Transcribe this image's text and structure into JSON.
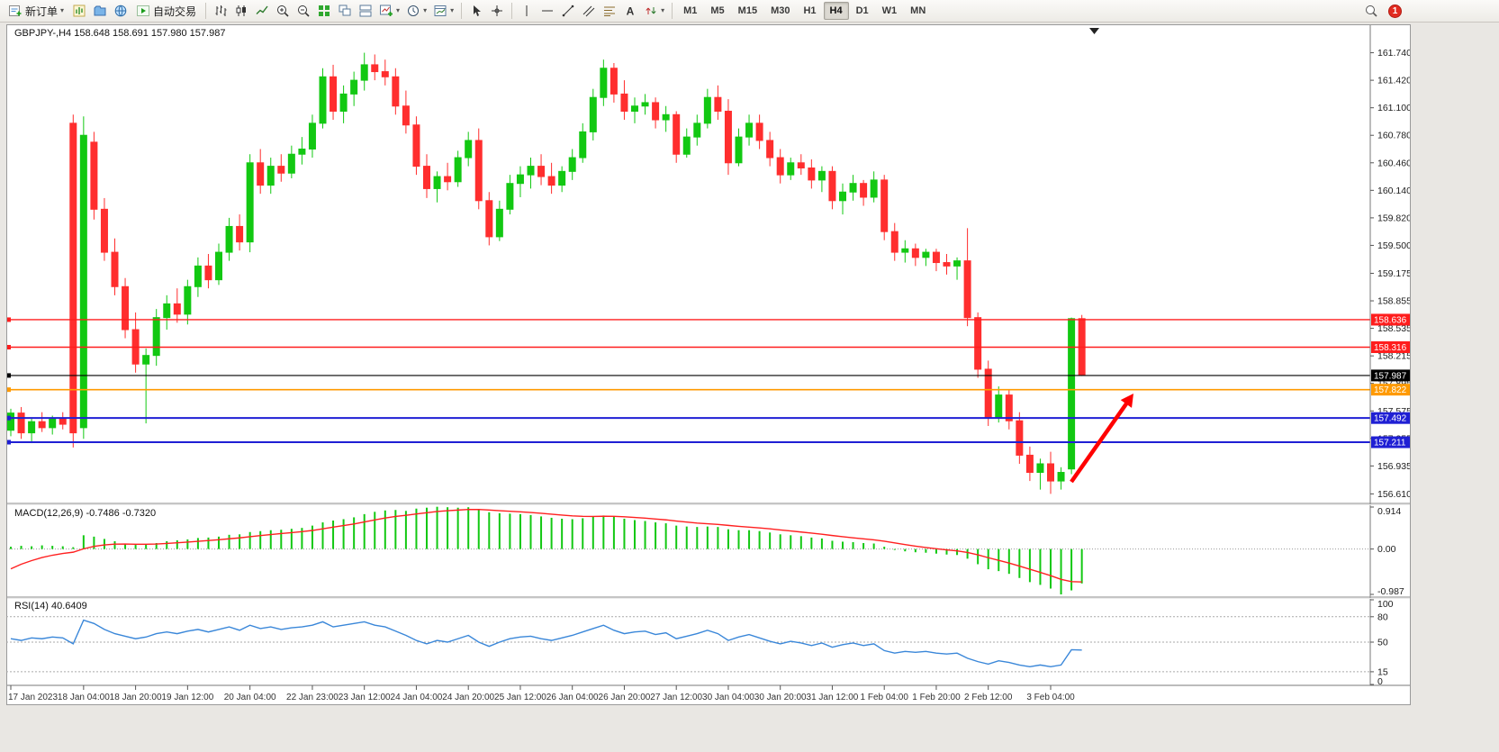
{
  "toolbar": {
    "new_order": "新订单",
    "autotrade": "自动交易",
    "timeframes": [
      "M1",
      "M5",
      "M15",
      "M30",
      "H1",
      "H4",
      "D1",
      "W1",
      "MN"
    ],
    "active_timeframe": "H4",
    "notification_count": "1",
    "icons": [
      "new-order",
      "new-chart",
      "profiles",
      "market-watch",
      "autotrade",
      "bar-chart",
      "candle-chart",
      "line-chart",
      "zoom-in",
      "zoom-out",
      "tile-windows",
      "cascade-windows",
      "tile-horizontal",
      "add-indicator",
      "periods",
      "templates",
      "cursor",
      "crosshair",
      "vertical-line",
      "horizontal-line",
      "trendline",
      "channel",
      "fibonacci",
      "text",
      "arrows",
      "search",
      "notification"
    ]
  },
  "chart_data": {
    "type": "candlestick",
    "symbol_title": "GBPJPY-,H4",
    "ohlc_text": "158.648 158.691 157.980 157.987",
    "colors": {
      "bull": "#12c812",
      "bear": "#ff2e2e",
      "macd_hist": "#12c812",
      "macd_signal": "#ff2020",
      "rsi": "#3a87d9",
      "axis_text": "#1c1c1c"
    },
    "price_axis": {
      "max": 162.06,
      "min": 156.52,
      "ticks": [
        "161.740",
        "161.420",
        "161.100",
        "160.780",
        "160.460",
        "160.140",
        "159.820",
        "159.500",
        "159.175",
        "158.855",
        "158.535",
        "158.215",
        "157.895",
        "157.575",
        "157.255",
        "156.935",
        "156.610"
      ]
    },
    "candles": [
      [
        157.35,
        157.6,
        157.28,
        157.55
      ],
      [
        157.55,
        157.62,
        157.25,
        157.32
      ],
      [
        157.32,
        157.5,
        157.2,
        157.45
      ],
      [
        157.45,
        157.56,
        157.33,
        157.38
      ],
      [
        157.38,
        157.52,
        157.3,
        157.48
      ],
      [
        157.48,
        157.56,
        157.36,
        157.42
      ],
      [
        160.92,
        161.02,
        157.15,
        157.32
      ],
      [
        157.38,
        161.0,
        157.25,
        160.78
      ],
      [
        160.7,
        160.82,
        159.8,
        159.92
      ],
      [
        159.92,
        160.05,
        159.32,
        159.42
      ],
      [
        159.42,
        159.58,
        158.92,
        159.02
      ],
      [
        159.02,
        159.12,
        158.42,
        158.52
      ],
      [
        158.52,
        158.72,
        158.02,
        158.12
      ],
      [
        158.12,
        158.3,
        157.43,
        158.22
      ],
      [
        158.22,
        158.76,
        158.1,
        158.66
      ],
      [
        158.66,
        158.92,
        158.52,
        158.82
      ],
      [
        158.82,
        159.0,
        158.6,
        158.7
      ],
      [
        158.7,
        159.1,
        158.58,
        159.02
      ],
      [
        159.02,
        159.36,
        158.9,
        159.26
      ],
      [
        159.26,
        159.4,
        159.0,
        159.1
      ],
      [
        159.1,
        159.52,
        159.04,
        159.42
      ],
      [
        159.42,
        159.82,
        159.32,
        159.72
      ],
      [
        159.72,
        159.86,
        159.44,
        159.54
      ],
      [
        159.54,
        160.56,
        159.42,
        160.46
      ],
      [
        160.46,
        160.62,
        160.1,
        160.2
      ],
      [
        160.2,
        160.52,
        160.1,
        160.42
      ],
      [
        160.42,
        160.56,
        160.24,
        160.34
      ],
      [
        160.34,
        160.66,
        160.28,
        160.56
      ],
      [
        160.56,
        160.76,
        160.44,
        160.62
      ],
      [
        160.62,
        161.02,
        160.52,
        160.92
      ],
      [
        160.92,
        161.56,
        160.86,
        161.46
      ],
      [
        161.46,
        161.6,
        160.96,
        161.06
      ],
      [
        161.06,
        161.36,
        160.92,
        161.26
      ],
      [
        161.26,
        161.52,
        161.12,
        161.42
      ],
      [
        161.42,
        161.74,
        161.3,
        161.6
      ],
      [
        161.6,
        161.72,
        161.42,
        161.52
      ],
      [
        161.52,
        161.66,
        161.36,
        161.46
      ],
      [
        161.46,
        161.56,
        161.02,
        161.12
      ],
      [
        161.12,
        161.3,
        160.8,
        160.9
      ],
      [
        160.9,
        161.0,
        160.32,
        160.42
      ],
      [
        160.42,
        160.56,
        160.05,
        160.16
      ],
      [
        160.16,
        160.36,
        160.0,
        160.3
      ],
      [
        160.3,
        160.46,
        160.14,
        160.24
      ],
      [
        160.24,
        160.6,
        160.18,
        160.52
      ],
      [
        160.52,
        160.82,
        160.42,
        160.72
      ],
      [
        160.72,
        160.86,
        159.92,
        160.02
      ],
      [
        160.02,
        160.12,
        159.5,
        159.6
      ],
      [
        159.6,
        160.02,
        159.55,
        159.92
      ],
      [
        159.92,
        160.32,
        159.86,
        160.22
      ],
      [
        160.22,
        160.42,
        160.06,
        160.32
      ],
      [
        160.32,
        160.52,
        160.16,
        160.42
      ],
      [
        160.42,
        160.56,
        160.2,
        160.3
      ],
      [
        160.3,
        160.46,
        160.1,
        160.2
      ],
      [
        160.2,
        160.42,
        160.12,
        160.36
      ],
      [
        160.36,
        160.62,
        160.26,
        160.52
      ],
      [
        160.52,
        160.92,
        160.46,
        160.82
      ],
      [
        160.82,
        161.32,
        160.72,
        161.22
      ],
      [
        161.22,
        161.66,
        161.12,
        161.56
      ],
      [
        161.56,
        161.62,
        161.16,
        161.26
      ],
      [
        161.26,
        161.42,
        160.96,
        161.06
      ],
      [
        161.06,
        161.22,
        160.92,
        161.12
      ],
      [
        161.12,
        161.26,
        161.02,
        161.16
      ],
      [
        161.16,
        161.22,
        160.86,
        160.96
      ],
      [
        160.96,
        161.12,
        160.82,
        161.02
      ],
      [
        161.02,
        161.06,
        160.46,
        160.56
      ],
      [
        160.56,
        160.86,
        160.52,
        160.76
      ],
      [
        160.76,
        161.02,
        160.66,
        160.92
      ],
      [
        160.92,
        161.32,
        160.86,
        161.22
      ],
      [
        161.22,
        161.36,
        160.96,
        161.06
      ],
      [
        161.06,
        161.2,
        160.32,
        160.46
      ],
      [
        160.46,
        160.86,
        160.42,
        160.76
      ],
      [
        160.76,
        161.02,
        160.66,
        160.92
      ],
      [
        160.92,
        161.02,
        160.62,
        160.72
      ],
      [
        160.72,
        160.82,
        160.42,
        160.52
      ],
      [
        160.52,
        160.62,
        160.22,
        160.32
      ],
      [
        160.32,
        160.52,
        160.26,
        160.46
      ],
      [
        160.46,
        160.56,
        160.32,
        160.4
      ],
      [
        160.4,
        160.5,
        160.16,
        160.26
      ],
      [
        160.26,
        160.42,
        160.12,
        160.36
      ],
      [
        160.36,
        160.42,
        159.92,
        160.02
      ],
      [
        160.02,
        160.22,
        159.86,
        160.12
      ],
      [
        160.12,
        160.32,
        160.02,
        160.22
      ],
      [
        160.22,
        160.26,
        159.96,
        160.06
      ],
      [
        160.06,
        160.36,
        160.0,
        160.26
      ],
      [
        160.26,
        160.32,
        159.56,
        159.66
      ],
      [
        159.66,
        159.76,
        159.32,
        159.42
      ],
      [
        159.42,
        159.56,
        159.3,
        159.46
      ],
      [
        159.46,
        159.52,
        159.26,
        159.36
      ],
      [
        159.36,
        159.46,
        159.26,
        159.42
      ],
      [
        159.42,
        159.46,
        159.2,
        159.3
      ],
      [
        159.3,
        159.4,
        159.16,
        159.26
      ],
      [
        159.26,
        159.36,
        159.1,
        159.32
      ],
      [
        159.32,
        159.7,
        158.56,
        158.66
      ],
      [
        158.66,
        158.72,
        157.96,
        158.06
      ],
      [
        158.06,
        158.16,
        157.4,
        157.5
      ],
      [
        157.5,
        157.86,
        157.44,
        157.76
      ],
      [
        157.76,
        157.82,
        157.36,
        157.46
      ],
      [
        157.46,
        157.56,
        156.96,
        157.06
      ],
      [
        157.06,
        157.16,
        156.76,
        156.86
      ],
      [
        156.86,
        157.02,
        156.66,
        156.96
      ],
      [
        156.96,
        157.1,
        156.61,
        156.76
      ],
      [
        156.76,
        156.92,
        156.66,
        156.86
      ],
      [
        156.9,
        158.66,
        156.84,
        158.648
      ],
      [
        158.648,
        158.691,
        157.98,
        157.987
      ]
    ],
    "time_labels": [
      {
        "i": 0,
        "t": "17 Jan 2023"
      },
      {
        "i": 7,
        "t": "18 Jan 04:00"
      },
      {
        "i": 12,
        "t": "18 Jan 20:00"
      },
      {
        "i": 17,
        "t": "19 Jan 12:00"
      },
      {
        "i": 23,
        "t": "20 Jan 04:00"
      },
      {
        "i": 29,
        "t": "22 Jan 23:00"
      },
      {
        "i": 34,
        "t": "23 Jan 12:00"
      },
      {
        "i": 39,
        "t": "24 Jan 04:00"
      },
      {
        "i": 44,
        "t": "24 Jan 20:00"
      },
      {
        "i": 49,
        "t": "25 Jan 12:00"
      },
      {
        "i": 54,
        "t": "26 Jan 04:00"
      },
      {
        "i": 59,
        "t": "26 Jan 20:00"
      },
      {
        "i": 64,
        "t": "27 Jan 12:00"
      },
      {
        "i": 69,
        "t": "30 Jan 04:00"
      },
      {
        "i": 74,
        "t": "30 Jan 20:00"
      },
      {
        "i": 79,
        "t": "31 Jan 12:00"
      },
      {
        "i": 84,
        "t": "1 Feb 04:00"
      },
      {
        "i": 89,
        "t": "1 Feb 20:00"
      },
      {
        "i": 94,
        "t": "2 Feb 12:00"
      },
      {
        "i": 100,
        "t": "3 Feb 04:00"
      }
    ],
    "hlines": [
      {
        "price": 158.636,
        "label": "158.636",
        "color": "#ff1d1d",
        "width": 1.4
      },
      {
        "price": 158.316,
        "label": "158.316",
        "color": "#ff1d1d",
        "width": 1.4
      },
      {
        "price": 157.987,
        "label": "157.987",
        "color": "#000000",
        "width": 1.2
      },
      {
        "price": 157.822,
        "label": "157.822",
        "color": "#ff9a00",
        "width": 1.6
      },
      {
        "price": 157.492,
        "label": "157.492",
        "color": "#1f1fd4",
        "width": 2
      },
      {
        "price": 157.211,
        "label": "157.211",
        "color": "#1f1fd4",
        "width": 2
      }
    ],
    "panes": {
      "macd": {
        "title": "MACD(12,26,9)",
        "value_text": "-0.7486 -0.7320",
        "scale": {
          "max": 0.914,
          "min": -0.987,
          "labels": [
            "0.914",
            "0.00",
            "-0.987"
          ]
        },
        "signal_seed": -0.55,
        "signal_period": 9,
        "main": [
          0.05,
          0.07,
          0.06,
          0.08,
          0.07,
          0.06,
          0.04,
          0.3,
          0.27,
          0.22,
          0.17,
          0.12,
          0.09,
          0.1,
          0.13,
          0.17,
          0.19,
          0.21,
          0.24,
          0.25,
          0.27,
          0.31,
          0.32,
          0.37,
          0.39,
          0.41,
          0.42,
          0.44,
          0.46,
          0.51,
          0.58,
          0.62,
          0.65,
          0.69,
          0.76,
          0.81,
          0.84,
          0.85,
          0.83,
          0.88,
          0.9,
          0.92,
          0.91,
          0.9,
          0.91,
          0.86,
          0.8,
          0.78,
          0.77,
          0.76,
          0.74,
          0.71,
          0.68,
          0.66,
          0.65,
          0.67,
          0.7,
          0.73,
          0.71,
          0.66,
          0.63,
          0.61,
          0.58,
          0.56,
          0.51,
          0.49,
          0.48,
          0.49,
          0.48,
          0.43,
          0.41,
          0.41,
          0.39,
          0.36,
          0.32,
          0.3,
          0.28,
          0.25,
          0.23,
          0.18,
          0.16,
          0.15,
          0.13,
          0.12,
          0.05,
          -0.02,
          -0.05,
          -0.07,
          -0.08,
          -0.1,
          -0.12,
          -0.13,
          -0.21,
          -0.33,
          -0.44,
          -0.48,
          -0.54,
          -0.63,
          -0.72,
          -0.78,
          -0.86,
          -0.987,
          -0.9,
          -0.7486
        ]
      },
      "rsi": {
        "title": "RSI(14)",
        "value_text": "40.6409",
        "levels": [
          80,
          50,
          15
        ],
        "scale_labels": [
          "100",
          "80",
          "50",
          "15",
          "0"
        ],
        "values": [
          54,
          52,
          55,
          54,
          56,
          55,
          48,
          76,
          72,
          65,
          60,
          57,
          54,
          56,
          60,
          62,
          60,
          63,
          65,
          62,
          65,
          68,
          64,
          70,
          66,
          68,
          65,
          67,
          68,
          70,
          74,
          68,
          70,
          72,
          74,
          70,
          68,
          63,
          58,
          52,
          48,
          52,
          50,
          54,
          58,
          50,
          45,
          50,
          54,
          56,
          57,
          54,
          52,
          55,
          58,
          62,
          66,
          70,
          64,
          60,
          62,
          63,
          59,
          61,
          54,
          57,
          60,
          64,
          60,
          52,
          56,
          59,
          55,
          51,
          48,
          51,
          49,
          46,
          49,
          44,
          47,
          49,
          46,
          48,
          40,
          37,
          39,
          38,
          39,
          37,
          36,
          37,
          31,
          27,
          24,
          28,
          26,
          23,
          21,
          23,
          21,
          23,
          41,
          40.64
        ]
      }
    },
    "annotation_arrow": {
      "from": [
        1183,
        508
      ],
      "to": [
        1252,
        410
      ],
      "color": "#ff0000"
    }
  }
}
